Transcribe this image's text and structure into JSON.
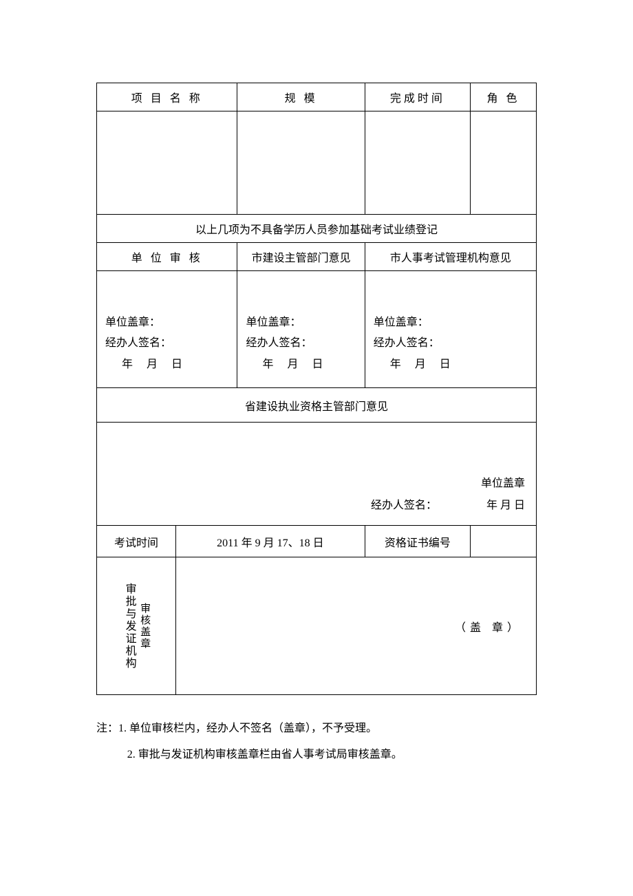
{
  "headers": {
    "project_name": "项 目 名 称",
    "scale": "规     模",
    "complete_time": "完成时间",
    "role": "角 色"
  },
  "section_merged": "以上几项为不具备学历人员参加基础考试业绩登记",
  "audit_headers": {
    "unit": "单 位 审 核",
    "city_construction": "市建设主管部门意见",
    "city_hr": "市人事考试管理机构意见"
  },
  "audit_body": {
    "seal": "单位盖章：",
    "signer": "经办人签名：",
    "date": "年  月   日"
  },
  "province_opinion": {
    "header": "省建设执业资格主管部门意见",
    "seal": "单位盖章",
    "signer": "经办人签名：",
    "date_prefix": "年    月    日"
  },
  "exam_row": {
    "time_label": "考试时间",
    "time_value": "2011 年 9 月 17、18 日",
    "cert_label": "资格证书编号",
    "cert_value": ""
  },
  "approval": {
    "main": "审批与发证机构",
    "sub": "审核盖章",
    "seal": "（盖  章）"
  },
  "notes": {
    "line1": "注：1.  单位审核栏内，经办人不签名（盖章），不予受理。",
    "line2": "2.  审批与发证机构审核盖章栏由省人事考试局审核盖章。"
  }
}
